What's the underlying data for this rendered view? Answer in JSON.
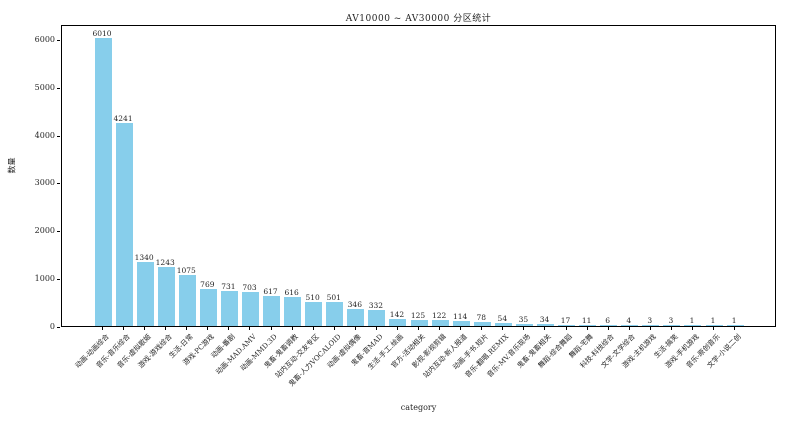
{
  "figure": {
    "title": "AV10000 ~ AV30000 分区统计",
    "xlabel": "category",
    "ylabel": "数量"
  },
  "chart_data": {
    "type": "bar",
    "title": "AV10000 ~ AV30000 分区统计",
    "xlabel": "category",
    "ylabel": "数量",
    "ylim": [
      0,
      6310
    ],
    "yticks": [
      0,
      1000,
      2000,
      3000,
      4000,
      5000,
      6000
    ],
    "grid": false,
    "legend_position": "none",
    "bar_color": "#87CEEB",
    "axis_color": "#000000",
    "text_color": "#262626",
    "categories": [
      "动画-动画综合",
      "音乐-音乐综合",
      "音乐-虚拟歌姬",
      "游戏-游戏综合",
      "生活-日常",
      "游戏-PC游戏",
      "动画-番剧",
      "动画-MAD.AMV",
      "动画-MMD.3D",
      "鬼畜-鬼畜调教",
      "站内互动-交友专区",
      "鬼畜-人力VOCALOID",
      "动画-虚拟偶像",
      "鬼畜-音MAD",
      "生活-手工.绘画",
      "官方-活动相关",
      "影视-影视剪辑",
      "站内互动-新人报道",
      "动画-手书.短片",
      "音乐-翻唱.REMIX",
      "音乐-MV.音乐现场",
      "鬼畜-鬼畜相关",
      "舞蹈-综合舞蹈",
      "舞蹈-宅舞",
      "科技-科技综合",
      "文学-文学综合",
      "游戏-主机游戏",
      "生活-搞笑",
      "游戏-手机游戏",
      "音乐-原创音乐",
      "文学-小说二创"
    ],
    "values": [
      6010,
      4241,
      1340,
      1243,
      1075,
      769,
      731,
      703,
      617,
      616,
      510,
      501,
      346,
      332,
      142,
      125,
      122,
      114,
      78,
      54,
      35,
      34,
      17,
      11,
      6,
      4,
      3,
      3,
      1,
      1,
      1
    ]
  }
}
